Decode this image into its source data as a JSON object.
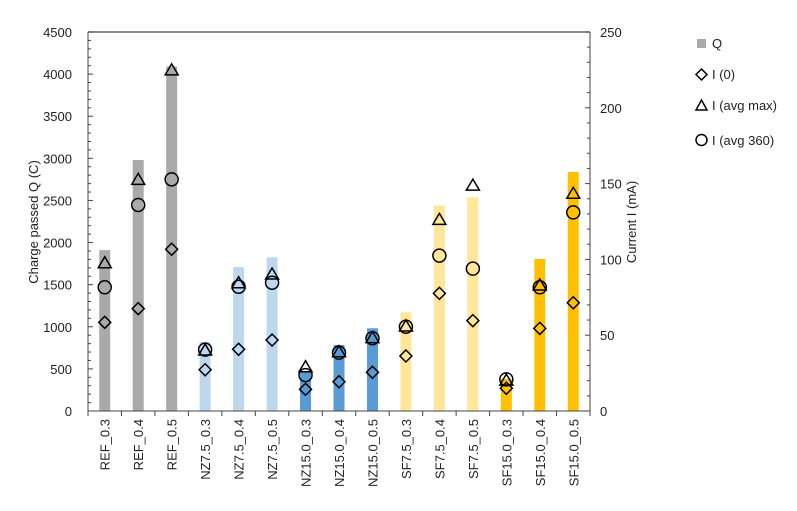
{
  "chart_data": {
    "type": "bar",
    "categories": [
      "REF_0.3",
      "REF_0.4",
      "REF_0.5",
      "NZ7.5_0.3",
      "NZ7.5_0.4",
      "NZ7.5_0.5",
      "NZ15.0_0.3",
      "NZ15.0_0.4",
      "NZ15.0_0.5",
      "SF7.5_0.3",
      "SF7.5_0.4",
      "SF7.5_0.5",
      "SF15.0_0.3",
      "SF15.0_0.4",
      "SF15.0_0.5"
    ],
    "bar_colors": [
      "#aba9a9",
      "#aba9a9",
      "#aba9a9",
      "#bdd7ee",
      "#bdd7ee",
      "#bdd7ee",
      "#5b9bd5",
      "#5b9bd5",
      "#5b9bd5",
      "#ffe699",
      "#ffe699",
      "#ffe699",
      "#ffc000",
      "#ffc000",
      "#ffc000"
    ],
    "ylabel": "Charge passed Q (C)",
    "y2label": "Current I (mA)",
    "ylim": [
      0,
      4500
    ],
    "y2lim": [
      0,
      250
    ],
    "yticks": [
      "0",
      "500",
      "1000",
      "1500",
      "2000",
      "2500",
      "3000",
      "3500",
      "4000",
      "4500"
    ],
    "y2ticks": [
      "0",
      "50",
      "100",
      "150",
      "200",
      "250"
    ],
    "grid": false,
    "legend_position": "right",
    "series": [
      {
        "name": "Q",
        "axis": "left",
        "marker": "bar",
        "values": [
          1910,
          2980,
          4090,
          820,
          1710,
          1825,
          470,
          784,
          982,
          1172,
          2440,
          2538,
          380,
          1805,
          2838
        ]
      },
      {
        "name": "I (0)",
        "axis": "right",
        "marker": "diamond",
        "values": [
          58.5,
          67.5,
          106.7,
          27.2,
          40.7,
          46.8,
          14.3,
          19.3,
          25.5,
          36.3,
          77.6,
          59.6,
          15,
          54.5,
          71.4
        ]
      },
      {
        "name": "I (avg max)",
        "axis": "right",
        "marker": "triangle",
        "values": [
          97.8,
          152.8,
          225,
          40.2,
          84.6,
          90.4,
          29.2,
          39.1,
          48.4,
          56.1,
          126.4,
          149,
          20.4,
          83.1,
          143.6
        ]
      },
      {
        "name": "I (avg 360)",
        "axis": "right",
        "marker": "circle",
        "values": [
          81.6,
          135.9,
          152.8,
          40.5,
          82,
          84.6,
          23.7,
          38.5,
          48,
          55.6,
          102.5,
          93.9,
          20.9,
          81.6,
          131
        ]
      }
    ]
  }
}
